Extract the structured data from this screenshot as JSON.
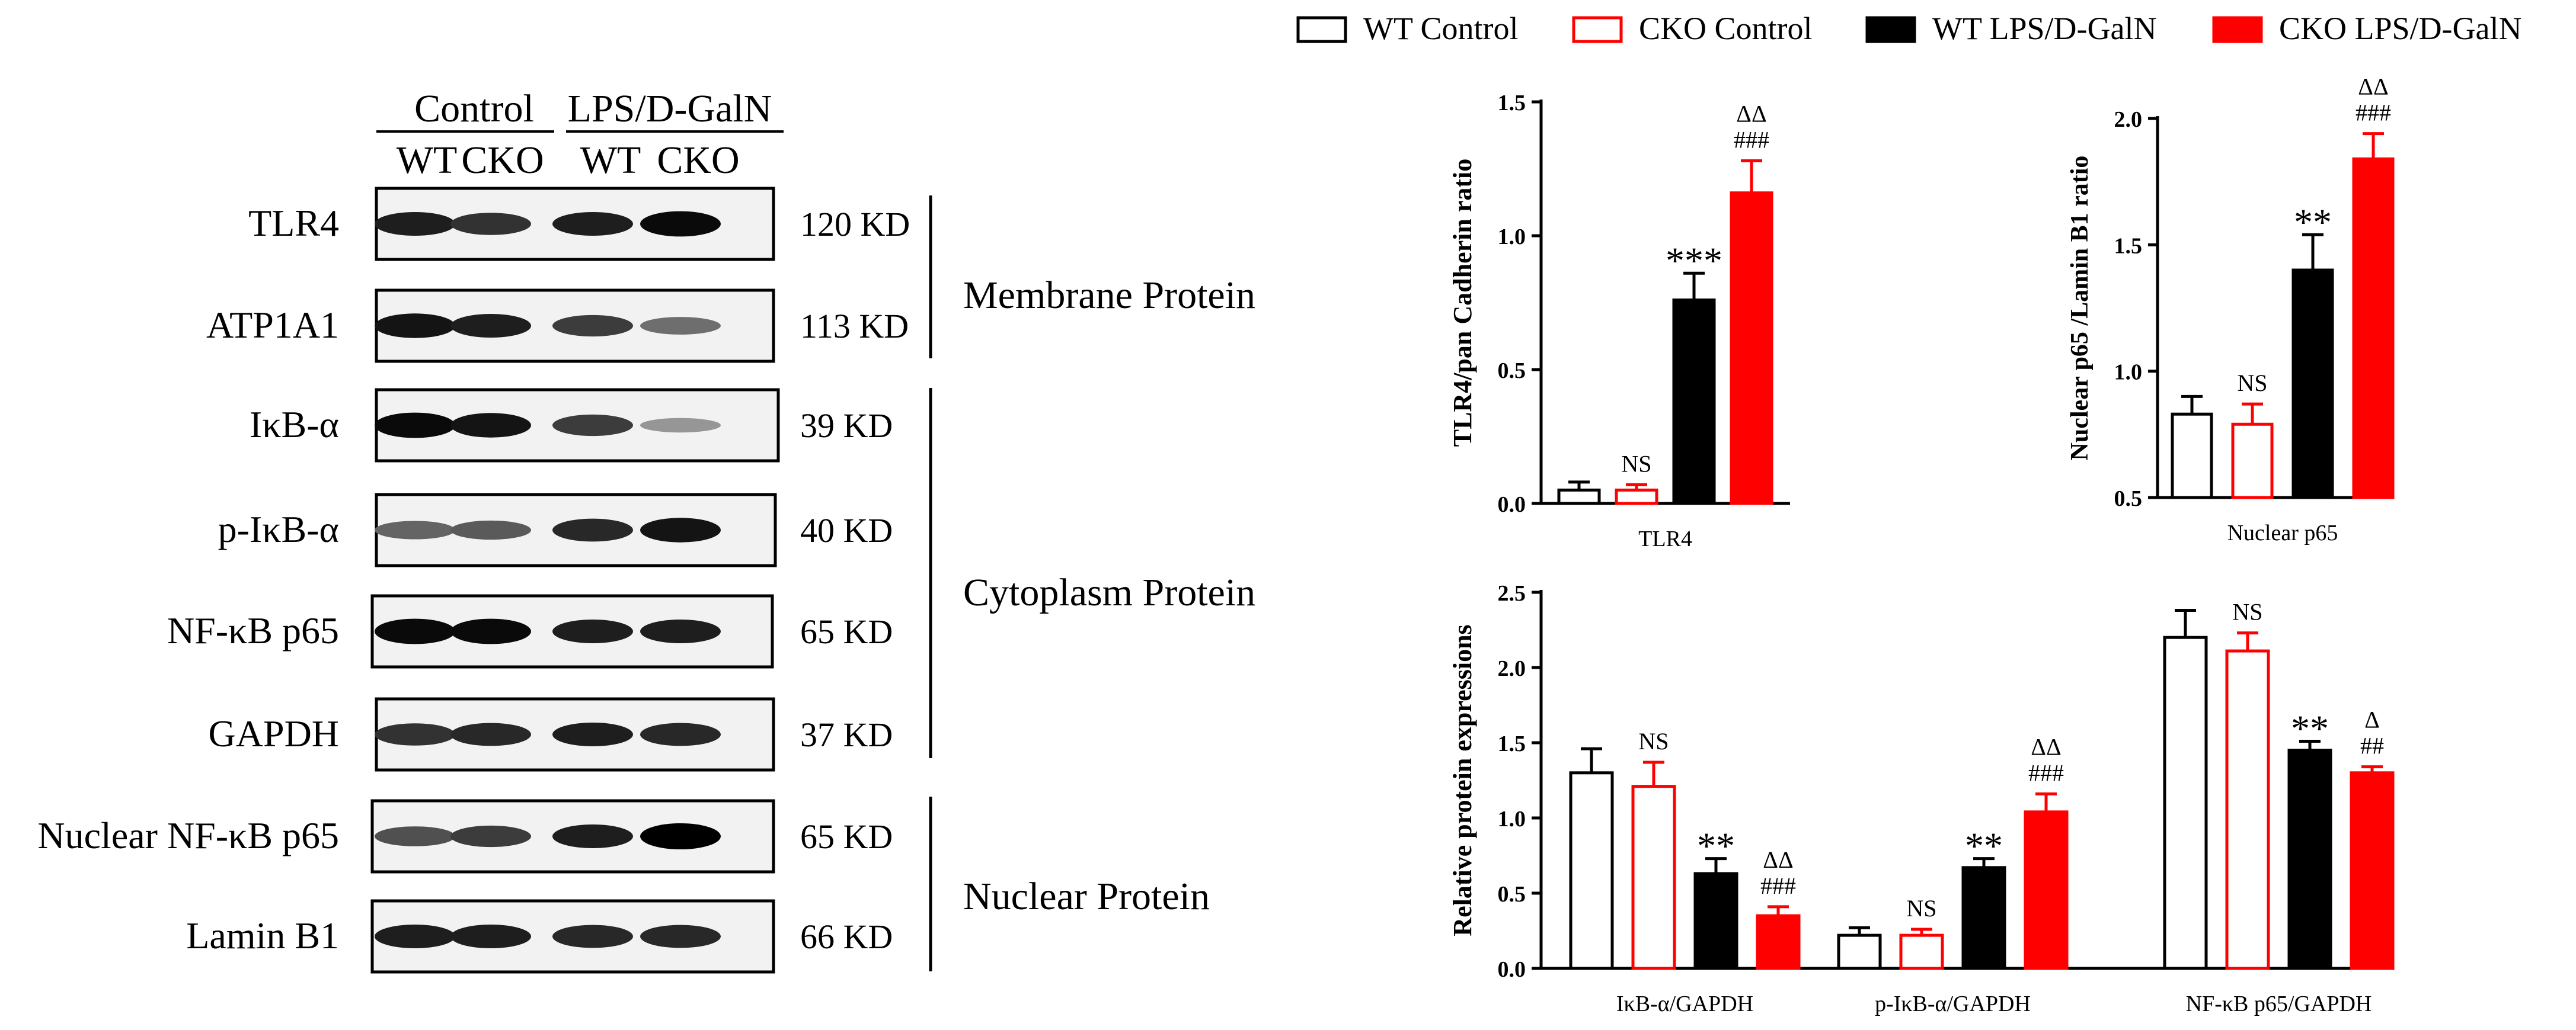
{
  "legend": [
    {
      "label": "WT Control",
      "fill": "#ffffff",
      "stroke": "#000000"
    },
    {
      "label": "CKO Control",
      "fill": "#ffffff",
      "stroke": "#ff0000"
    },
    {
      "label": "WT LPS/D-GalN",
      "fill": "#000000",
      "stroke": "#000000"
    },
    {
      "label": "CKO LPS/D-GalN",
      "fill": "#ff0000",
      "stroke": "#ff0000"
    }
  ],
  "blot": {
    "group_headers": [
      "Control",
      "LPS/D-GalN"
    ],
    "lane_labels": [
      "WT",
      "CKO",
      "WT",
      "CKO"
    ],
    "rows": [
      {
        "protein": "TLR4",
        "kd": "120 KD",
        "intensity": [
          0.85,
          0.75,
          0.85,
          0.95
        ]
      },
      {
        "protein": "ATP1A1",
        "kd": "113 KD",
        "intensity": [
          0.9,
          0.85,
          0.7,
          0.45
        ]
      },
      {
        "protein": "IκB-α",
        "kd": "39 KD",
        "intensity": [
          0.95,
          0.9,
          0.7,
          0.25
        ]
      },
      {
        "protein": "p-IκB-α",
        "kd": "40 KD",
        "intensity": [
          0.5,
          0.55,
          0.8,
          0.9
        ]
      },
      {
        "protein": "NF-κB p65",
        "kd": "65 KD",
        "intensity": [
          0.95,
          0.95,
          0.85,
          0.85
        ]
      },
      {
        "protein": "GAPDH",
        "kd": "37 KD",
        "intensity": [
          0.75,
          0.8,
          0.85,
          0.8
        ]
      },
      {
        "protein": "Nuclear NF-κB p65",
        "kd": "65 KD",
        "intensity": [
          0.6,
          0.7,
          0.85,
          1.0
        ]
      },
      {
        "protein": "Lamin B1",
        "kd": "66 KD",
        "intensity": [
          0.85,
          0.85,
          0.8,
          0.8
        ]
      }
    ],
    "fractions": [
      "Membrane Protein",
      "Cytoplasm Protein",
      "Nuclear Protein"
    ]
  },
  "chart_data": [
    {
      "type": "bar",
      "title": "",
      "xlabel": "TLR4",
      "ylabel": "TLR4/pan Cadherin ratio",
      "ylim": [
        0,
        1.5
      ],
      "yticks": [
        "0.0",
        "0.5",
        "1.0",
        "1.5"
      ],
      "categories": [
        "TLR4"
      ],
      "series": [
        {
          "name": "WT Control",
          "values": [
            0.05
          ],
          "errors": [
            0.03
          ],
          "annotation": [
            ""
          ]
        },
        {
          "name": "CKO Control",
          "values": [
            0.05
          ],
          "errors": [
            0.02
          ],
          "annotation": [
            "NS"
          ]
        },
        {
          "name": "WT LPS/D-GalN",
          "values": [
            0.76
          ],
          "errors": [
            0.1
          ],
          "annotation": [
            "***"
          ]
        },
        {
          "name": "CKO LPS/D-GalN",
          "values": [
            1.16
          ],
          "errors": [
            0.12
          ],
          "annotation": [
            "###",
            "ΔΔ"
          ]
        }
      ]
    },
    {
      "type": "bar",
      "title": "",
      "xlabel": "Nuclear p65",
      "ylabel": "Nuclear p65 /Lamin B1 ratio",
      "ylim": [
        0.5,
        2.0
      ],
      "yticks": [
        "0.5",
        "1.0",
        "1.5",
        "2.0"
      ],
      "categories": [
        "Nuclear p65"
      ],
      "series": [
        {
          "name": "WT Control",
          "values": [
            0.83
          ],
          "errors": [
            0.07
          ],
          "annotation": [
            ""
          ]
        },
        {
          "name": "CKO Control",
          "values": [
            0.79
          ],
          "errors": [
            0.08
          ],
          "annotation": [
            "NS"
          ]
        },
        {
          "name": "WT LPS/D-GalN",
          "values": [
            1.4
          ],
          "errors": [
            0.14
          ],
          "annotation": [
            "**"
          ]
        },
        {
          "name": "CKO LPS/D-GalN",
          "values": [
            1.84
          ],
          "errors": [
            0.1
          ],
          "annotation": [
            "###",
            "ΔΔ"
          ]
        }
      ]
    },
    {
      "type": "bar",
      "title": "",
      "xlabel": "",
      "ylabel": "Relative  protein expressions",
      "ylim": [
        0,
        2.5
      ],
      "yticks": [
        "0.0",
        "0.5",
        "1.0",
        "1.5",
        "2.0",
        "2.5"
      ],
      "categories": [
        "IκB-α/GAPDH",
        "p-IκB-α/GAPDH",
        "NF-κB p65/GAPDH"
      ],
      "series": [
        {
          "name": "WT Control",
          "values": [
            1.3,
            0.22,
            2.2
          ],
          "errors": [
            0.16,
            0.05,
            0.18
          ],
          "annotation": [
            "",
            "",
            ""
          ]
        },
        {
          "name": "CKO Control",
          "values": [
            1.21,
            0.22,
            2.11
          ],
          "errors": [
            0.16,
            0.04,
            0.12
          ],
          "annotation": [
            "NS",
            "NS",
            "NS"
          ]
        },
        {
          "name": "WT LPS/D-GalN",
          "values": [
            0.63,
            0.67,
            1.45
          ],
          "errors": [
            0.1,
            0.06,
            0.06
          ],
          "annotation": [
            "**",
            "**",
            "**"
          ]
        },
        {
          "name": "CKO LPS/D-GalN",
          "values": [
            0.35,
            1.04,
            1.3
          ],
          "errors": [
            0.06,
            0.12,
            0.04
          ],
          "annotation": [
            "###|ΔΔ",
            "###|ΔΔ",
            "##|Δ"
          ]
        }
      ]
    }
  ]
}
